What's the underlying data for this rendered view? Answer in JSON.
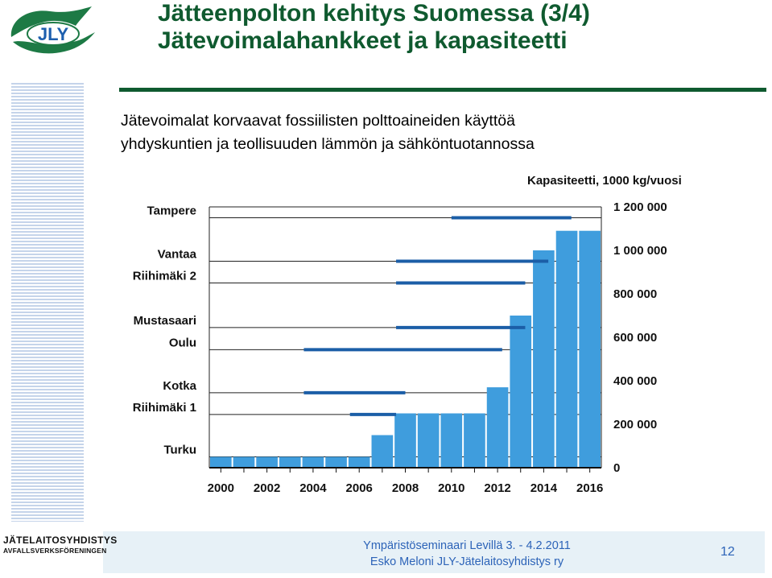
{
  "header": {
    "logo_text": "JLY",
    "title_line1": "Jätteenpolton kehitys Suomessa (3/4)",
    "title_line2": "Jätevoimalahankkeet ja kapasiteetti"
  },
  "subtitle": {
    "line1": "Jätevoimalat  korvaavat fossiilisten polttoaineiden käyttöä",
    "line2": "yhdyskuntien ja teollisuuden lämmön ja sähköntuotannossa"
  },
  "colors": {
    "title_green": "#0f5a2f",
    "bar_fill": "#3f9ddd",
    "project_line": "#1b5ea7",
    "footer_text": "#2c63b8",
    "footer_band": "#e7f1f7"
  },
  "chart_data": {
    "type": "bar",
    "ylabel": "Kapasiteetti, 1000 kg/vuosi",
    "ylim": [
      0,
      1200000
    ],
    "y_ticks": [
      0,
      200000,
      400000,
      600000,
      800000,
      1000000,
      1200000
    ],
    "y_tick_labels": [
      "0",
      "200 000",
      "400 000",
      "600 000",
      "800 000",
      "1 000 000",
      "1 200 000"
    ],
    "x_tick_labels": [
      "2000",
      "2002",
      "2004",
      "2006",
      "2008",
      "2010",
      "2012",
      "2014",
      "2016"
    ],
    "x_range": [
      2000,
      2016
    ],
    "grid": true,
    "bars": [
      {
        "year": 2000,
        "value": 50000
      },
      {
        "year": 2001,
        "value": 50000
      },
      {
        "year": 2002,
        "value": 50000
      },
      {
        "year": 2003,
        "value": 50000
      },
      {
        "year": 2004,
        "value": 50000
      },
      {
        "year": 2005,
        "value": 50000
      },
      {
        "year": 2006,
        "value": 50000
      },
      {
        "year": 2007,
        "value": 150000
      },
      {
        "year": 2008,
        "value": 250000
      },
      {
        "year": 2009,
        "value": 250000
      },
      {
        "year": 2010,
        "value": 250000
      },
      {
        "year": 2011,
        "value": 250000
      },
      {
        "year": 2012,
        "value": 370000
      },
      {
        "year": 2013,
        "value": 700000
      },
      {
        "year": 2014,
        "value": 1000000
      },
      {
        "year": 2015,
        "value": 1090000
      },
      {
        "year": 2016,
        "value": 1090000
      }
    ],
    "projects": [
      {
        "name": "Tampere",
        "start": 2010,
        "end": 2015.2,
        "row_value": 1150000
      },
      {
        "name": "Vantaa",
        "start": 2007.6,
        "end": 2014.2,
        "row_value": 950000
      },
      {
        "name": "Riihimäki 2",
        "start": 2007.6,
        "end": 2013.2,
        "row_value": 850000
      },
      {
        "name": "Mustasaari",
        "start": 2007.6,
        "end": 2013.2,
        "row_value": 645000
      },
      {
        "name": "Oulu",
        "start": 2003.6,
        "end": 2012.2,
        "row_value": 543000
      },
      {
        "name": "Kotka",
        "start": 2003.6,
        "end": 2008,
        "row_value": 345000
      },
      {
        "name": "Riihimäki 1",
        "start": 2005.6,
        "end": 2007.6,
        "row_value": 245000
      },
      {
        "name": "Turku",
        "start": 2000,
        "end": 2000,
        "row_value": 50000
      }
    ]
  },
  "footer": {
    "line1": "Ympäristöseminaari Levillä 3. - 4.2.2011",
    "line2": "Esko Meloni JLY-Jätelaitosyhdistys ry",
    "page": "12",
    "brand_line1": "JÄTELAITOSYHDISTYS",
    "brand_line2": "AVFALLSVERKSFÖRENINGEN"
  }
}
